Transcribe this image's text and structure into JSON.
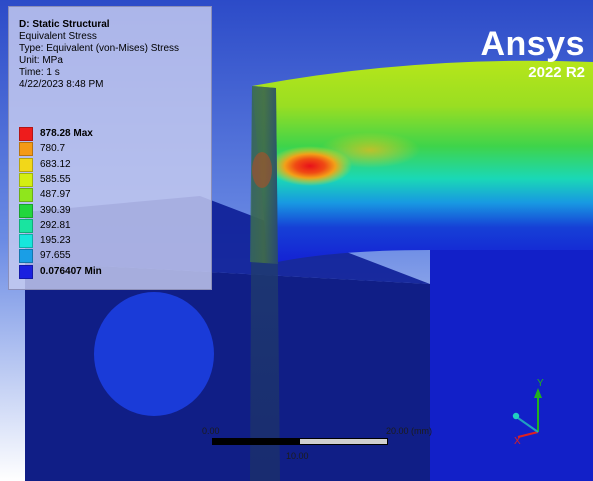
{
  "legend": {
    "title": "D: Static Structural",
    "result": "Equivalent Stress",
    "type": "Type: Equivalent (von-Mises) Stress",
    "unit": "Unit: MPa",
    "time": "Time: 1 s",
    "date": "4/22/2023 8:48 PM",
    "scale": [
      {
        "label": "878.28 Max",
        "color": "#ee1c1c",
        "bold": true
      },
      {
        "label": "780.7",
        "color": "#f49a16",
        "bold": false
      },
      {
        "label": "683.12",
        "color": "#f2d719",
        "bold": false
      },
      {
        "label": "585.55",
        "color": "#d4ee12",
        "bold": false
      },
      {
        "label": "487.97",
        "color": "#8fe61c",
        "bold": false
      },
      {
        "label": "390.39",
        "color": "#22d63c",
        "bold": false
      },
      {
        "label": "292.81",
        "color": "#19e4a0",
        "bold": false
      },
      {
        "label": "195.23",
        "color": "#17e6dc",
        "bold": false
      },
      {
        "label": "97.655",
        "color": "#1a9ee6",
        "bold": false
      },
      {
        "label": "0.076407 Min",
        "color": "#1a20e0",
        "bold": true
      }
    ]
  },
  "logo": {
    "name": "Ansys",
    "version": "2022 R2"
  },
  "scale_bar": {
    "left_label": "0.00",
    "right_label": "20.00 (mm)",
    "mid_label": "10.00"
  },
  "triad": {
    "y_label": "Y",
    "x_label": "X",
    "x_color": "#e02020",
    "y_color": "#20b020",
    "z_color": "#20a0c0"
  }
}
